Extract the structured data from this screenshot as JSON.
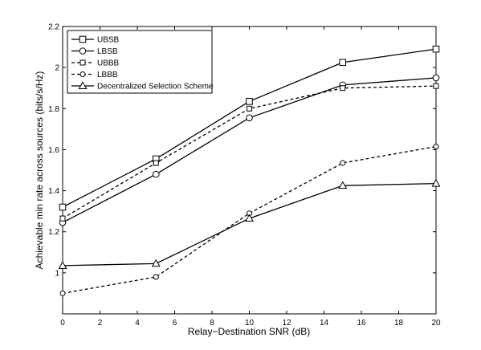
{
  "chart_data": {
    "type": "line",
    "title": "",
    "xlabel": "Relay−Destination SNR (dB)",
    "ylabel": "Achievable min rate across sources (bits/s/Hz)",
    "xlim": [
      0,
      20
    ],
    "ylim": [
      0.8,
      2.2
    ],
    "xticks": [
      0,
      2,
      4,
      6,
      8,
      10,
      12,
      14,
      16,
      18,
      20
    ],
    "yticks": [
      0.8,
      1,
      1.2,
      1.4,
      1.6,
      1.8,
      2,
      2.2
    ],
    "ytick_labels": [
      "",
      "1",
      "1.2",
      "1.4",
      "1.6",
      "1.8",
      "2",
      "2.2"
    ],
    "grid": false,
    "legend_position": "top-left",
    "x": [
      0,
      5,
      10,
      15,
      20
    ],
    "series": [
      {
        "name": "UBSB",
        "values": [
          1.32,
          1.555,
          1.835,
          2.025,
          2.09
        ],
        "marker": "square",
        "dash": "solid",
        "marker_size": "large"
      },
      {
        "name": "LBSB",
        "values": [
          1.245,
          1.48,
          1.755,
          1.915,
          1.95
        ],
        "marker": "circle",
        "dash": "solid",
        "marker_size": "large"
      },
      {
        "name": "UBBB",
        "values": [
          1.265,
          1.535,
          1.8,
          1.9,
          1.91
        ],
        "marker": "square",
        "dash": "dashed",
        "marker_size": "small"
      },
      {
        "name": "LBBB",
        "values": [
          0.9,
          0.98,
          1.29,
          1.535,
          1.615
        ],
        "marker": "circle",
        "dash": "dashed",
        "marker_size": "small"
      },
      {
        "name": "Decentralized Selection Scheme",
        "values": [
          1.035,
          1.045,
          1.265,
          1.425,
          1.435
        ],
        "marker": "triangle",
        "dash": "solid",
        "marker_size": "large"
      }
    ]
  }
}
